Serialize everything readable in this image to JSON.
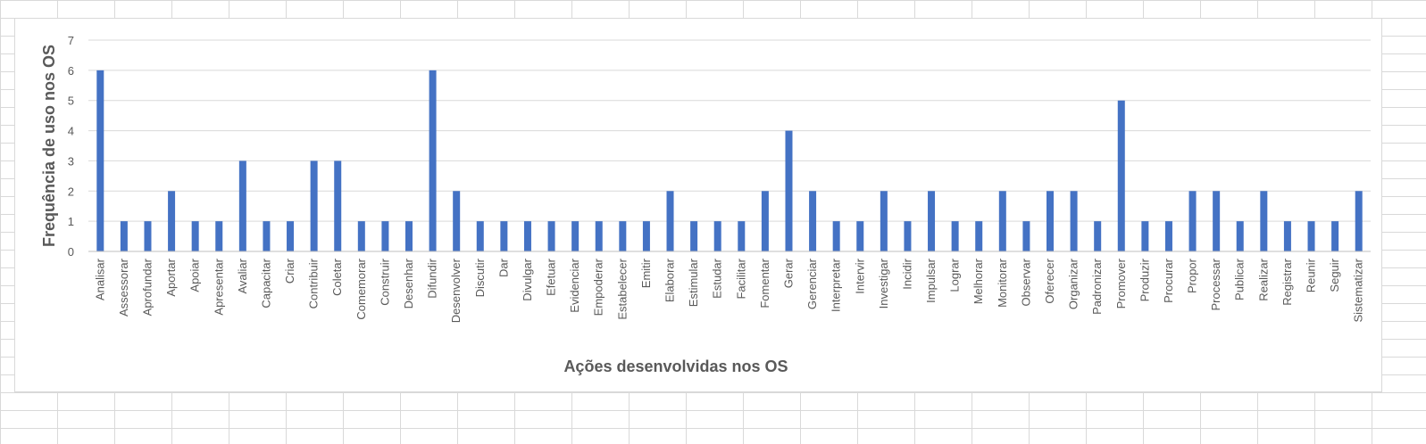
{
  "chart_data": {
    "type": "bar",
    "xlabel": "Ações desenvolvidas nos OS",
    "ylabel": "Frequência de uso  nos OS",
    "ylim": [
      0,
      7
    ],
    "yticks": [
      0,
      1,
      2,
      3,
      4,
      5,
      6,
      7
    ],
    "grid": true,
    "bar_color": "#4472c4",
    "categories": [
      "Analisar",
      "Assessorar",
      "Aprofundar",
      "Aportar",
      "Apoiar",
      "Apresentar",
      "Avaliar",
      "Capacitar",
      "Criar",
      "Contribuir",
      "Coletar",
      "Comemorar",
      "Construir",
      "Desenhar",
      "Difundir",
      "Desenvolver",
      "Discutir",
      "Dar",
      "Divulgar",
      "Efetuar",
      "Evidenciar",
      "Empoderar",
      "Estabelecer",
      "Emitir",
      "Elaborar",
      "Estimular",
      "Estudar",
      "Facilitar",
      "Fomentar",
      "Gerar",
      "Gerenciar",
      "Interpretar",
      "Intervir",
      "Investigar",
      "Incidir",
      "Impulsar",
      "Lograr",
      "Melhorar",
      "Monitorar",
      "Observar",
      "Oferecer",
      "Organizar",
      "Padronizar",
      "Promover",
      "Produzir",
      "Procurar",
      "Propor",
      "Processar",
      "Publicar",
      "Realizar",
      "Registrar",
      "Reunir",
      "Seguir",
      "Sistematizar"
    ],
    "values": [
      6,
      1,
      1,
      2,
      1,
      1,
      3,
      1,
      1,
      3,
      3,
      1,
      1,
      1,
      6,
      2,
      1,
      1,
      1,
      1,
      1,
      1,
      1,
      1,
      2,
      1,
      1,
      1,
      2,
      4,
      2,
      1,
      1,
      2,
      1,
      2,
      1,
      1,
      2,
      1,
      2,
      2,
      1,
      5,
      1,
      1,
      2,
      2,
      1,
      2,
      1,
      1,
      1,
      2
    ]
  }
}
